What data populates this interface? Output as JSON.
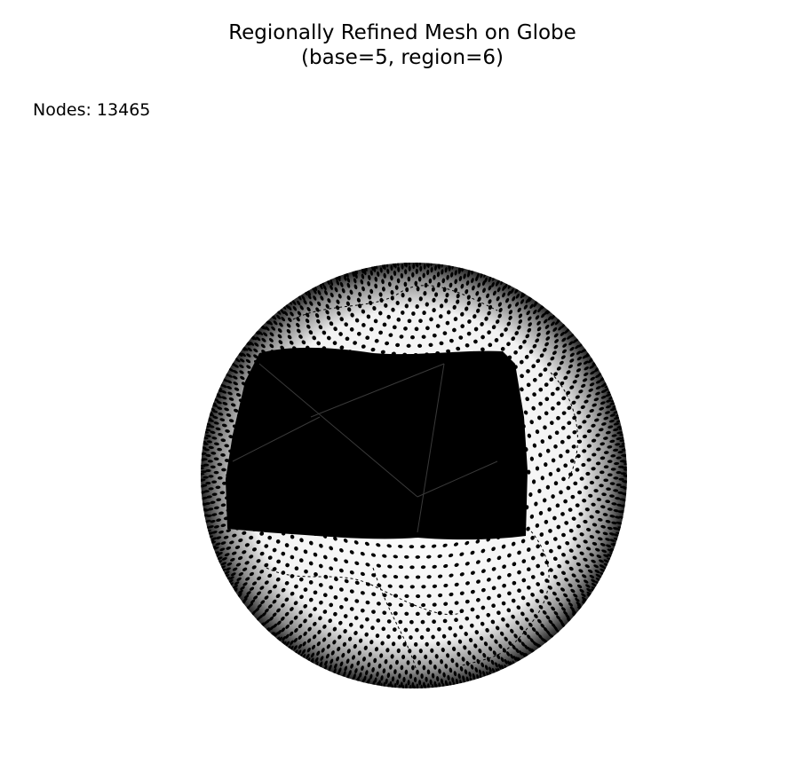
{
  "figure": {
    "title_line_1": "Regionally Refined Mesh on Globe",
    "title_line_2": "(base=5, region=6)",
    "nodes_text": "Nodes: 13465"
  },
  "mesh": {
    "node_count": 13465,
    "base_level": 5,
    "region_level": 6,
    "view": "orthographic globe",
    "node_color": "#000000",
    "coastline_color": "#000000",
    "background_color": "#ffffff"
  }
}
